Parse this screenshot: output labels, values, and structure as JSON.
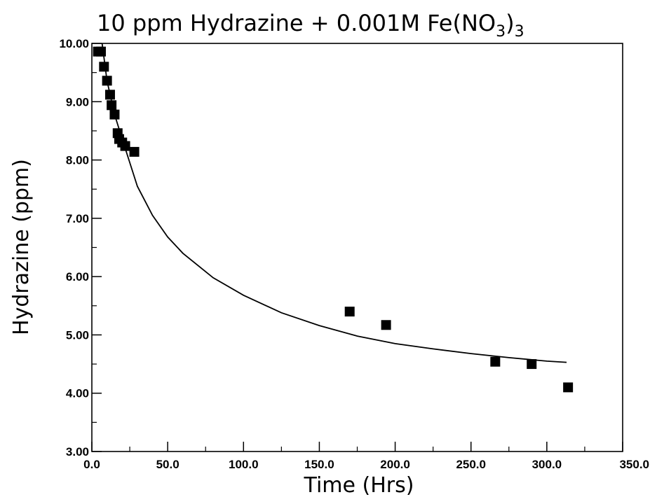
{
  "chart_data": {
    "type": "scatter",
    "title": "10  ppm  Hydrazine  +  0.001M  Fe(NO",
    "title_subscript": "3",
    "title_close": ")",
    "title_close_subscript": "3",
    "xlabel": "Time  (Hrs)",
    "ylabel": "Hydrazine  (ppm)",
    "xlim": [
      0,
      350
    ],
    "ylim": [
      3,
      10
    ],
    "x_ticks": [
      0,
      50,
      100,
      150,
      200,
      250,
      300,
      350
    ],
    "x_tick_labels": [
      "0.0",
      "50.0",
      "100.0",
      "150.0",
      "200.0",
      "250.0",
      "300.0",
      "350.0"
    ],
    "y_ticks": [
      3,
      4,
      5,
      6,
      7,
      8,
      9,
      10
    ],
    "y_tick_labels": [
      "3.00",
      "4.00",
      "5.00",
      "6.00",
      "7.00",
      "8.00",
      "9.00",
      "10.00"
    ],
    "grid": false,
    "legend": "none",
    "series": [
      {
        "kind": "points",
        "marker": "square",
        "color": "#000000",
        "x": [
          4,
          6,
          8,
          10,
          12,
          13,
          15,
          17,
          18,
          20,
          22,
          28,
          170,
          194,
          266,
          290,
          314
        ],
        "y": [
          9.86,
          9.86,
          9.6,
          9.36,
          9.12,
          8.94,
          8.78,
          8.46,
          8.36,
          8.3,
          8.24,
          8.14,
          5.4,
          5.17,
          4.54,
          4.5,
          4.1
        ]
      },
      {
        "kind": "fit-line",
        "color": "#000000",
        "x": [
          5,
          10,
          15,
          20,
          30,
          40,
          50,
          60,
          80,
          100,
          125,
          150,
          175,
          200,
          225,
          250,
          275,
          300,
          313
        ],
        "y": [
          10.35,
          9.36,
          8.78,
          8.36,
          7.55,
          7.05,
          6.68,
          6.4,
          5.98,
          5.68,
          5.38,
          5.16,
          4.98,
          4.85,
          4.76,
          4.68,
          4.61,
          4.55,
          4.53
        ]
      }
    ]
  }
}
